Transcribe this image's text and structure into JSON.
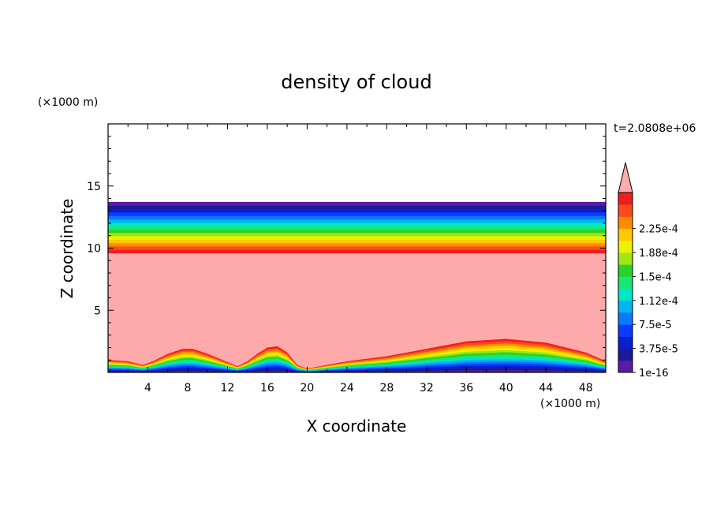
{
  "chart_data": {
    "type": "heatmap",
    "title": "density of cloud",
    "xlabel": "X coordinate",
    "ylabel": "Z coordinate",
    "x_unit": "(×1000 m)",
    "y_unit": "(×1000 m)",
    "time_label": "t=2.0808e+06",
    "xlim": [
      0,
      50
    ],
    "ylim": [
      0,
      20
    ],
    "x_ticks": [
      4,
      8,
      12,
      16,
      20,
      24,
      28,
      32,
      36,
      40,
      44,
      48
    ],
    "x_tick_labels": [
      "4",
      "8",
      "12",
      "16",
      "20",
      "24",
      "28",
      "32",
      "36",
      "40",
      "44",
      "48"
    ],
    "y_ticks": [
      5,
      10,
      15
    ],
    "y_tick_labels": [
      "5",
      "10",
      "15"
    ],
    "colorbar": {
      "extend": "max",
      "levels": [
        1e-16,
        1.875e-05,
        3.75e-05,
        5.625e-05,
        7.5e-05,
        9.375e-05,
        0.0001125,
        0.00013125,
        0.00015,
        0.00016875,
        0.0001875,
        0.00020625,
        0.000225,
        0.00024375
      ],
      "labels": [
        "1e-16",
        "3.75e-5",
        "7.5e-5",
        "1.12e-4",
        "1.5e-4",
        "1.88e-4",
        "2.25e-4"
      ],
      "colors": [
        "#5c1aa6",
        "#1a1a9a",
        "#0a1ed2",
        "#0a3cff",
        "#0a78ff",
        "#00b4f0",
        "#00e6c8",
        "#19e678",
        "#28d228",
        "#a0e614",
        "#f0f000",
        "#ffc800",
        "#ff8c00",
        "#ff4a1a",
        "#f01e1e"
      ],
      "over_color": "#ffaaaa"
    },
    "cloud_layer_z": [
      9.6,
      13.7
    ],
    "surface_cloud_tops": {
      "x": [
        0,
        2,
        3.5,
        4.5,
        6,
        7.5,
        8.5,
        10,
        11.5,
        13,
        14,
        15,
        16,
        17,
        18,
        19,
        20,
        22,
        24,
        28,
        32,
        36,
        40,
        44,
        48,
        50
      ],
      "z": [
        1.0,
        0.9,
        0.6,
        0.9,
        1.5,
        1.9,
        1.9,
        1.5,
        1.0,
        0.5,
        0.9,
        1.5,
        2.0,
        2.1,
        1.6,
        0.6,
        0.3,
        0.6,
        0.9,
        1.3,
        1.9,
        2.5,
        2.7,
        2.4,
        1.6,
        0.9
      ]
    }
  }
}
